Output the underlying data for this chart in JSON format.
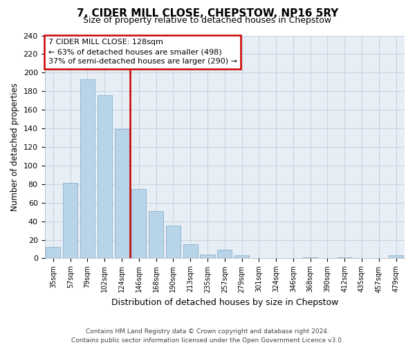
{
  "title": "7, CIDER MILL CLOSE, CHEPSTOW, NP16 5RY",
  "subtitle": "Size of property relative to detached houses in Chepstow",
  "xlabel": "Distribution of detached houses by size in Chepstow",
  "ylabel": "Number of detached properties",
  "bar_labels": [
    "35sqm",
    "57sqm",
    "79sqm",
    "102sqm",
    "124sqm",
    "146sqm",
    "168sqm",
    "190sqm",
    "213sqm",
    "235sqm",
    "257sqm",
    "279sqm",
    "301sqm",
    "324sqm",
    "346sqm",
    "368sqm",
    "390sqm",
    "412sqm",
    "435sqm",
    "457sqm",
    "479sqm"
  ],
  "bar_values": [
    12,
    81,
    193,
    176,
    139,
    75,
    51,
    35,
    15,
    4,
    9,
    3,
    0,
    0,
    0,
    1,
    0,
    1,
    0,
    0,
    3
  ],
  "highlight_index": 4,
  "bar_color_normal": "#b8d4e8",
  "bar_color_highlight": "#b8d4e8",
  "bar_edge_color": "#8ab0cc",
  "ylim": [
    0,
    240
  ],
  "yticks": [
    0,
    20,
    40,
    60,
    80,
    100,
    120,
    140,
    160,
    180,
    200,
    220,
    240
  ],
  "annotation_title": "7 CIDER MILL CLOSE: 128sqm",
  "annotation_line1": "← 63% of detached houses are smaller (498)",
  "annotation_line2": "37% of semi-detached houses are larger (290) →",
  "annotation_box_color": "#ffffff",
  "annotation_box_edge": "#cc0000",
  "line_color": "#cc0000",
  "bg_color": "#e8eef5",
  "grid_color": "#c8d4e0",
  "footer_line1": "Contains HM Land Registry data © Crown copyright and database right 2024.",
  "footer_line2": "Contains public sector information licensed under the Open Government Licence v3.0."
}
